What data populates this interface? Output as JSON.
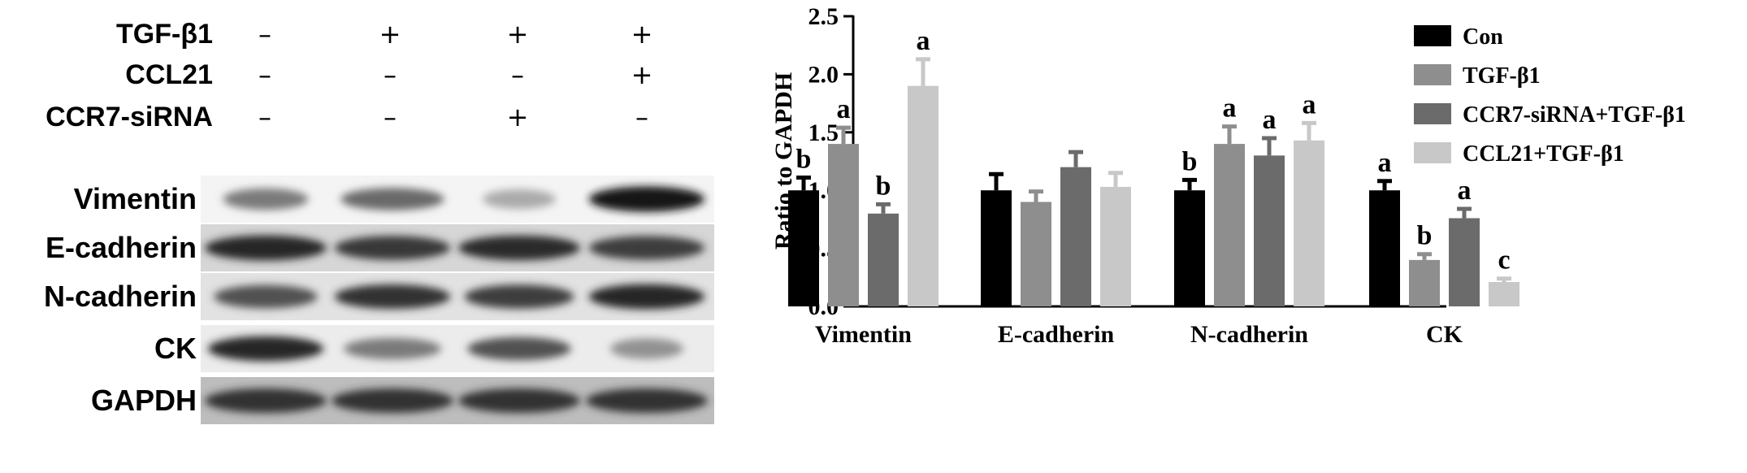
{
  "blot": {
    "treatments": [
      {
        "label": "TGF-β1",
        "signs": [
          "–",
          "+",
          "+",
          "+"
        ]
      },
      {
        "label": "CCL21",
        "signs": [
          "–",
          "–",
          "–",
          "+"
        ]
      },
      {
        "label": "CCR7-siRNA",
        "signs": [
          "–",
          "–",
          "+",
          "–"
        ]
      }
    ],
    "bands": [
      {
        "label": "Vimentin",
        "intensity": [
          0.55,
          0.62,
          0.35,
          0.95
        ],
        "width": [
          0.7,
          0.85,
          0.6,
          0.95
        ],
        "bg": "#f4f4f4"
      },
      {
        "label": "E-cadherin",
        "intensity": [
          0.9,
          0.82,
          0.88,
          0.8
        ],
        "width": [
          1,
          0.95,
          1,
          0.95
        ],
        "bg": "#d6d6d6"
      },
      {
        "label": "N-cadherin",
        "intensity": [
          0.72,
          0.85,
          0.8,
          0.9
        ],
        "width": [
          0.85,
          0.95,
          0.9,
          0.95
        ],
        "bg": "#e2e2e2"
      },
      {
        "label": "CK",
        "intensity": [
          0.9,
          0.55,
          0.72,
          0.45
        ],
        "width": [
          0.95,
          0.8,
          0.85,
          0.6
        ],
        "bg": "#ececec"
      },
      {
        "label": "GAPDH",
        "intensity": [
          0.85,
          0.85,
          0.85,
          0.85
        ],
        "width": [
          1,
          1,
          1,
          1
        ],
        "bg": "#bdbdbd"
      }
    ]
  },
  "chart_data": {
    "type": "bar",
    "title": "",
    "xlabel": "",
    "ylabel": "Ratio to GAPDH",
    "ylim": [
      0,
      2.5
    ],
    "yticks": [
      "0.0",
      "0.5",
      "1.0",
      "1.5",
      "2.0",
      "2.5"
    ],
    "categories": [
      "Vimentin",
      "E-cadherin",
      "N-cadherin",
      "CK"
    ],
    "legend_position": "top-right",
    "series": [
      {
        "name": "Con",
        "color": "#000000",
        "values": [
          1.0,
          1.0,
          1.0,
          1.0
        ],
        "errors": [
          0.11,
          0.14,
          0.09,
          0.08
        ],
        "sig": [
          "b",
          "",
          "b",
          "a"
        ]
      },
      {
        "name": "TGF-β1",
        "color": "#8e8e8e",
        "values": [
          1.4,
          0.9,
          1.4,
          0.4
        ],
        "errors": [
          0.14,
          0.09,
          0.15,
          0.05
        ],
        "sig": [
          "a",
          "",
          "a",
          "b"
        ]
      },
      {
        "name": "CCR7-siRNA+TGF-β1",
        "color": "#6b6b6b",
        "values": [
          0.8,
          1.2,
          1.3,
          0.76
        ],
        "errors": [
          0.08,
          0.13,
          0.15,
          0.08
        ],
        "sig": [
          "b",
          "",
          "a",
          "a"
        ]
      },
      {
        "name": "CCL21+TGF-β1",
        "color": "#c8c8c8",
        "values": [
          1.9,
          1.03,
          1.43,
          0.21
        ],
        "errors": [
          0.23,
          0.12,
          0.15,
          0.03
        ],
        "sig": [
          "a",
          "",
          "a",
          "c"
        ]
      }
    ]
  }
}
